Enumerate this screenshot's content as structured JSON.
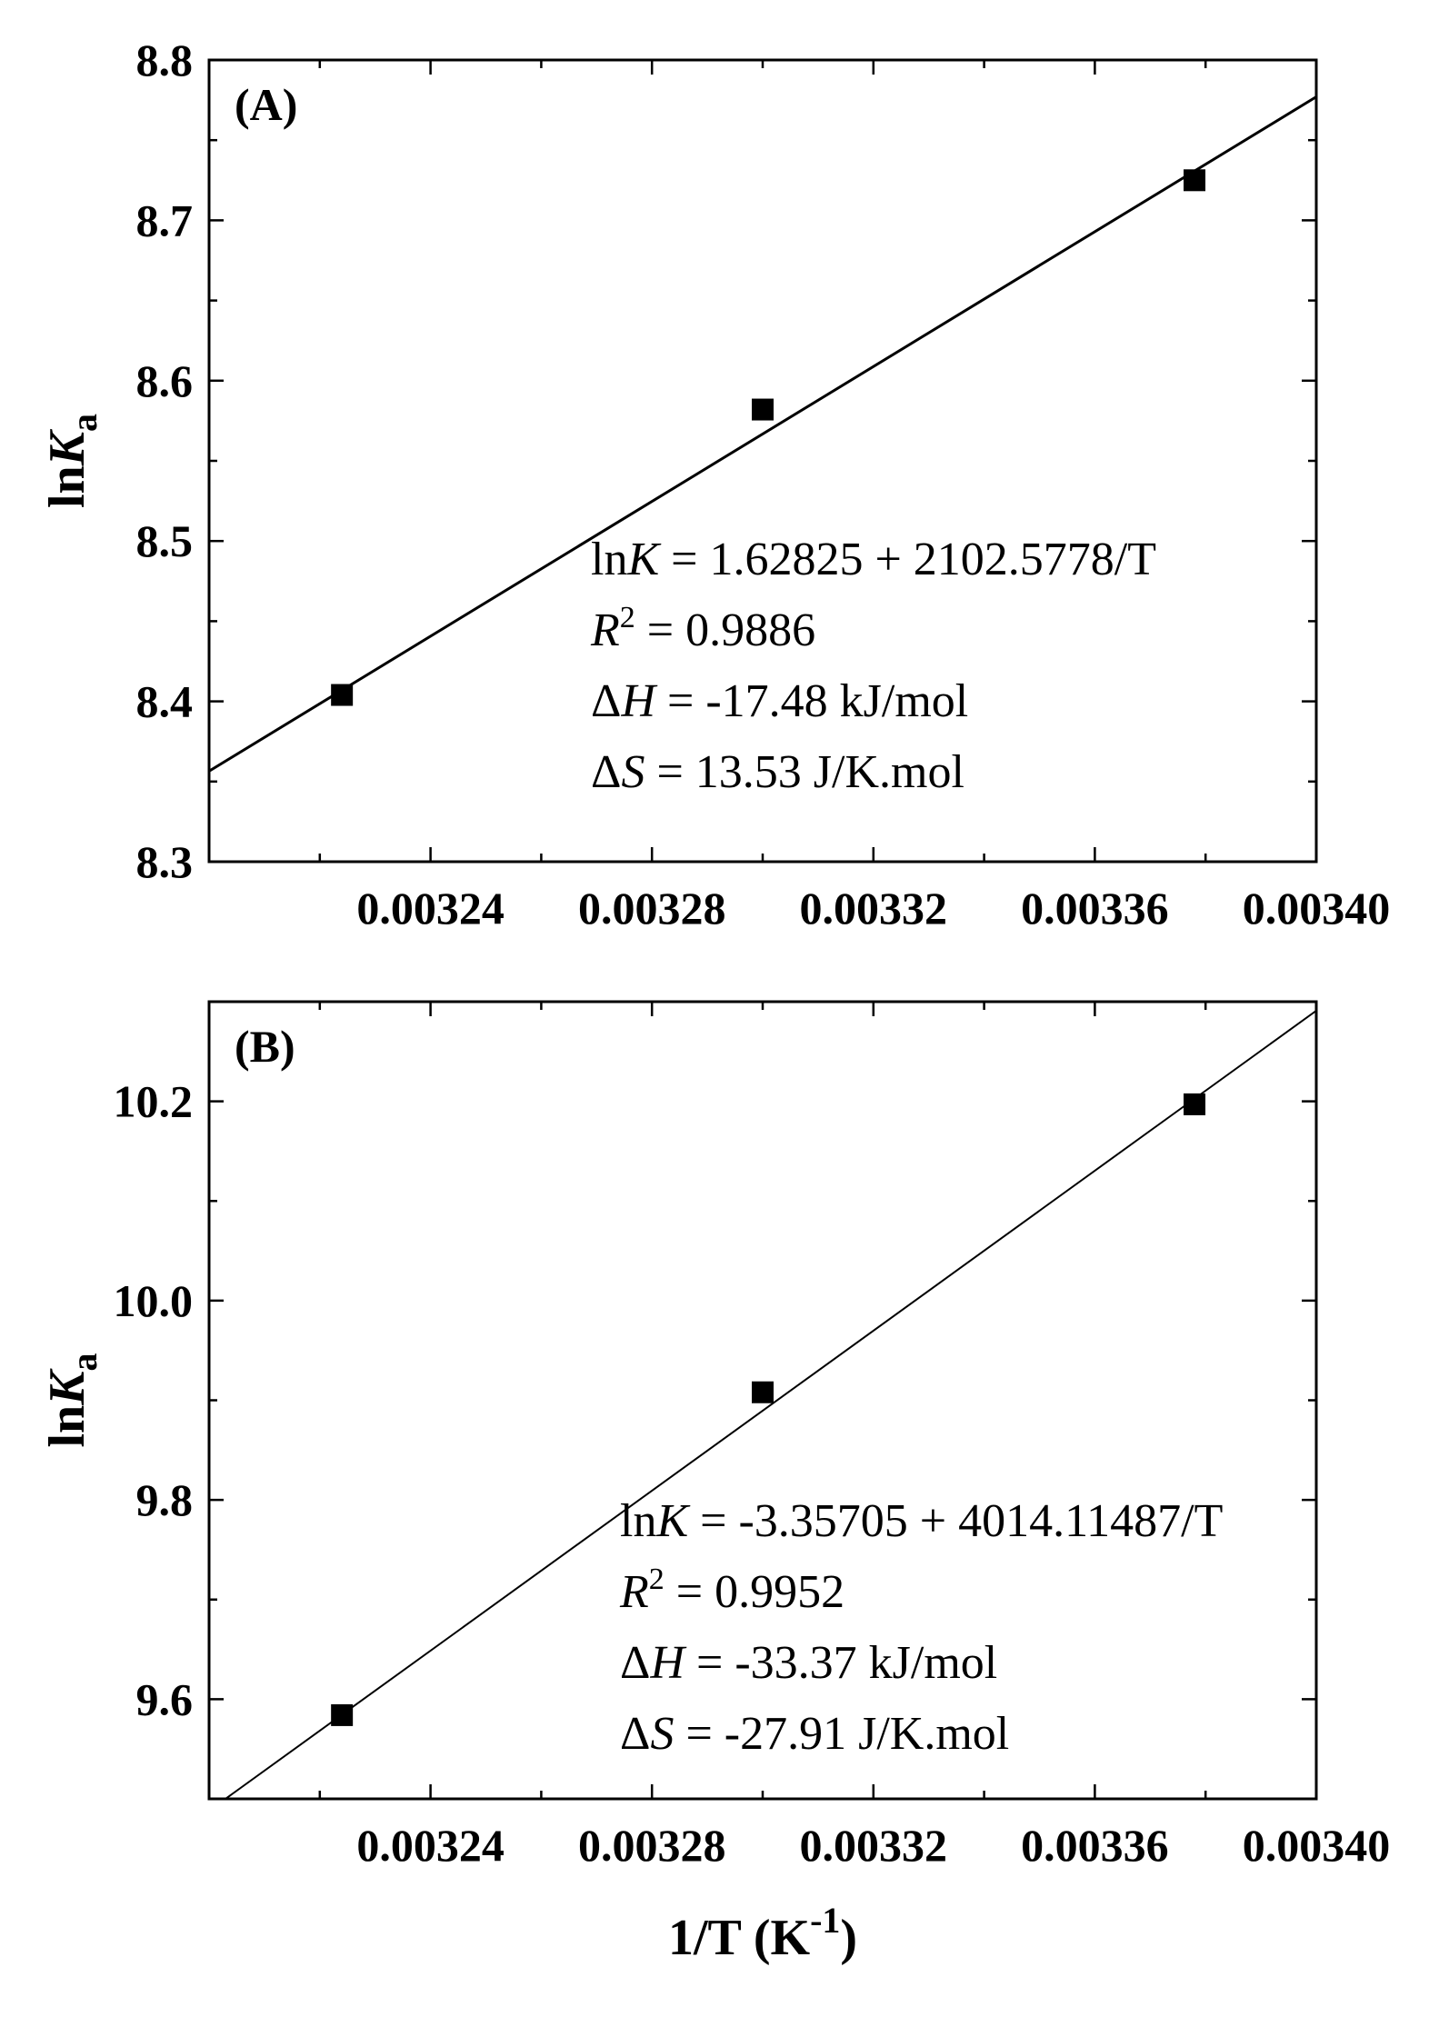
{
  "chart_data": [
    {
      "type": "scatter",
      "panel_label": "(A)",
      "ylabel_main": "ln",
      "ylabel_italic": "K",
      "ylabel_sub": "a",
      "xlim": [
        0.0032,
        0.0034
      ],
      "ylim": [
        8.3,
        8.8
      ],
      "x_ticks": [
        0.00324,
        0.00328,
        0.00332,
        0.00336,
        0.0034
      ],
      "x_tick_labels": [
        "0.00324",
        "0.00328",
        "0.00332",
        "0.00336",
        "0.00340"
      ],
      "y_ticks": [
        8.3,
        8.4,
        8.5,
        8.6,
        8.7,
        8.8
      ],
      "y_tick_labels": [
        "8.3",
        "8.4",
        "8.5",
        "8.6",
        "8.7",
        "8.8"
      ],
      "x": [
        0.003224,
        0.0033,
        0.003378
      ],
      "y": [
        8.404,
        8.582,
        8.725
      ],
      "fit": {
        "intercept": 1.62825,
        "slope": 2102.5778
      },
      "annotations": [
        {
          "pre": "ln",
          "italic": "K",
          "rest": " = 1.62825 + 2102.5778/T"
        },
        {
          "italic": "R",
          "sup": "2",
          "rest": " = 0.9886"
        },
        {
          "pre": "Δ",
          "italic": "H",
          "rest": " = -17.48 kJ/mol"
        },
        {
          "pre": "Δ",
          "italic": "S",
          "rest": " = 13.53 J/K.mol"
        }
      ]
    },
    {
      "type": "scatter",
      "panel_label": "(B)",
      "ylabel_main": "ln",
      "ylabel_italic": "K",
      "ylabel_sub": "a",
      "xlabel_main": "1/T (K",
      "xlabel_sup": "-1",
      "xlabel_end": ")",
      "xlim": [
        0.0032,
        0.0034
      ],
      "ylim": [
        9.5,
        10.3
      ],
      "x_ticks": [
        0.00324,
        0.00328,
        0.00332,
        0.00336,
        0.0034
      ],
      "x_tick_labels": [
        "0.00324",
        "0.00328",
        "0.00332",
        "0.00336",
        "0.00340"
      ],
      "y_ticks": [
        9.6,
        9.8,
        10.0,
        10.2
      ],
      "y_tick_labels": [
        "9.6",
        "9.8",
        "10.0",
        "10.2"
      ],
      "x": [
        0.003224,
        0.0033,
        0.003378
      ],
      "y": [
        9.584,
        9.908,
        10.197
      ],
      "fit": {
        "intercept": -3.35705,
        "slope": 4014.11487
      },
      "annotations": [
        {
          "pre": "ln",
          "italic": "K",
          "rest": " = -3.35705 + 4014.11487/T"
        },
        {
          "italic": "R",
          "sup": "2",
          "rest": " = 0.9952"
        },
        {
          "pre": "Δ",
          "italic": "H",
          "rest": " = -33.37 kJ/mol"
        },
        {
          "pre": "Δ",
          "italic": "S",
          "rest": " = -27.91 J/K.mol"
        }
      ]
    }
  ]
}
